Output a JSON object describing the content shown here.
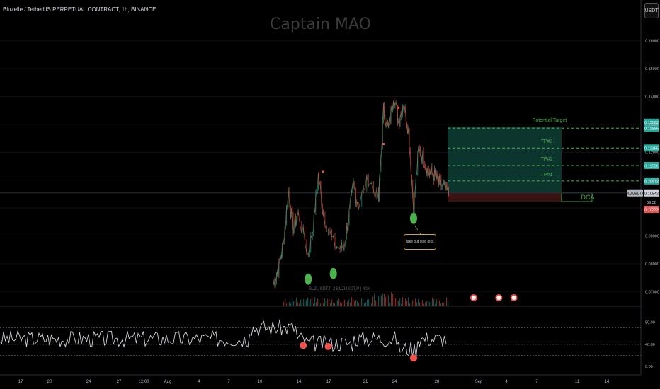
{
  "header": {
    "symbol_title": "Bluzelle / TetherUS PERPETUAL CONTRACT, 1h, BINANCE",
    "watermark": "Captain MAO",
    "currency_button": "USDT"
  },
  "chart_data": [
    {
      "type": "line",
      "name": "price",
      "title": "Bluzelle / TetherUS PERPETUAL CONTRACT, 1h, BINANCE",
      "ylim": [
        0.065,
        0.1645
      ],
      "y_ticks": [
        "0.16000",
        "0.15000",
        "0.14000",
        "0.13000",
        "0.12000",
        "0.11000",
        "0.10000",
        "0.09000",
        "0.08000",
        "0.07000"
      ],
      "x_ticks": [
        "17",
        "20",
        "24",
        "27",
        "12:00",
        "Aug",
        "4",
        "7",
        "10",
        "14",
        "17",
        "21",
        "24",
        "28",
        "Sep",
        "4",
        "7",
        "11",
        "14"
      ],
      "keypoints": [
        {
          "x": "Aug 11 12:00",
          "y": 0.0725
        },
        {
          "x": "Aug 12",
          "y": 0.078
        },
        {
          "x": "Aug 12 12:00",
          "y": 0.087
        },
        {
          "x": "Aug 13",
          "y": 0.106
        },
        {
          "x": "Aug 13 12:00",
          "y": 0.093
        },
        {
          "x": "Aug 14",
          "y": 0.098
        },
        {
          "x": "Aug 15",
          "y": 0.083
        },
        {
          "x": "Aug 15 12:00",
          "y": 0.094
        },
        {
          "x": "Aug 16",
          "y": 0.112
        },
        {
          "x": "Aug 16 12:00",
          "y": 0.098
        },
        {
          "x": "Aug 17 12:00",
          "y": 0.087
        },
        {
          "x": "Aug 18 12:00",
          "y": 0.085
        },
        {
          "x": "Aug 19",
          "y": 0.096
        },
        {
          "x": "Aug 19 12:00",
          "y": 0.108
        },
        {
          "x": "Aug 20",
          "y": 0.101
        },
        {
          "x": "Aug 21",
          "y": 0.111
        },
        {
          "x": "Aug 22",
          "y": 0.103
        },
        {
          "x": "Aug 22 12:00",
          "y": 0.135
        },
        {
          "x": "Aug 23",
          "y": 0.128
        },
        {
          "x": "Aug 23 12:00",
          "y": 0.141
        },
        {
          "x": "Aug 24",
          "y": 0.131
        },
        {
          "x": "Aug 24 12:00",
          "y": 0.138
        },
        {
          "x": "Aug 25",
          "y": 0.128
        },
        {
          "x": "Aug 25 12:00",
          "y": 0.1
        },
        {
          "x": "Aug 26",
          "y": 0.121
        },
        {
          "x": "Aug 26 12:00",
          "y": 0.118
        },
        {
          "x": "Aug 27",
          "y": 0.113
        },
        {
          "x": "Aug 27 12:00",
          "y": 0.112
        },
        {
          "x": "Aug 28",
          "y": 0.109
        },
        {
          "x": "Aug 28 12:00",
          "y": 0.107
        },
        {
          "x": "Aug 29",
          "y": 0.105
        }
      ],
      "annotations": {
        "potential_target_label": "Potential Target",
        "levels": [
          {
            "label": "",
            "price": 0.12866,
            "axis_label": "0.12866",
            "color": "#26a69a"
          },
          {
            "label": "TP#3",
            "price": 0.12155,
            "axis_label": "0.12155",
            "color": "#26a69a"
          },
          {
            "label": "TP#2",
            "price": 0.11526,
            "axis_label": "0.11526",
            "color": "#26a69a"
          },
          {
            "label": "TP#1",
            "price": 0.10972,
            "axis_label": "0.10972",
            "color": "#26a69a"
          }
        ],
        "dca_label": "DCA",
        "dca_zone": [
          0.10232,
          0.10542
        ],
        "target_zone_top": 0.1292,
        "stop_label": "0.10232",
        "current_price_label": "BLZUSDT.P",
        "current_price": "0.10542",
        "countdown": "59:38",
        "top_label": "0.13082",
        "note_text": "take out stop loss",
        "green_circles": [
          {
            "x": "Aug 15",
            "y": 0.0745
          },
          {
            "x": "Aug 17 12:00",
            "y": 0.0765
          },
          {
            "x": "Aug 25 12:00",
            "y": 0.0963
          }
        ],
        "red_markers": [
          {
            "x": "Aug 16 12:00",
            "y": 0.113
          },
          {
            "x": "Aug 22 12:00",
            "y": 0.123
          },
          {
            "x": "Aug 24",
            "y": 0.136
          }
        ],
        "event_icons": [
          "Aug 31 12:00",
          "Sep 3",
          "Sep 4 12:00"
        ]
      },
      "volume_overlay_text": "BLZUSDT.P 3 BLZUSDT.P | 40K"
    },
    {
      "type": "line",
      "name": "oscillator",
      "ylim": [
        0,
        100
      ],
      "y_ticks": [
        "80.00",
        "40.00",
        "0.00"
      ],
      "levels": [
        70,
        40,
        20
      ],
      "signal_markers": [
        {
          "x": "Aug 14 12:00",
          "y": 38
        },
        {
          "x": "Aug 17",
          "y": 36
        },
        {
          "x": "Aug 25 12:00",
          "y": 15
        }
      ]
    }
  ],
  "colors": {
    "up": "#26a69a",
    "down": "#ef5350",
    "zone_green": "#0d3b33",
    "zone_red": "#3d1414",
    "axis_text": "#b2b5be",
    "grid": "#111111",
    "dash_green": "#4caf50",
    "osc_line": "#d1d4dc"
  }
}
